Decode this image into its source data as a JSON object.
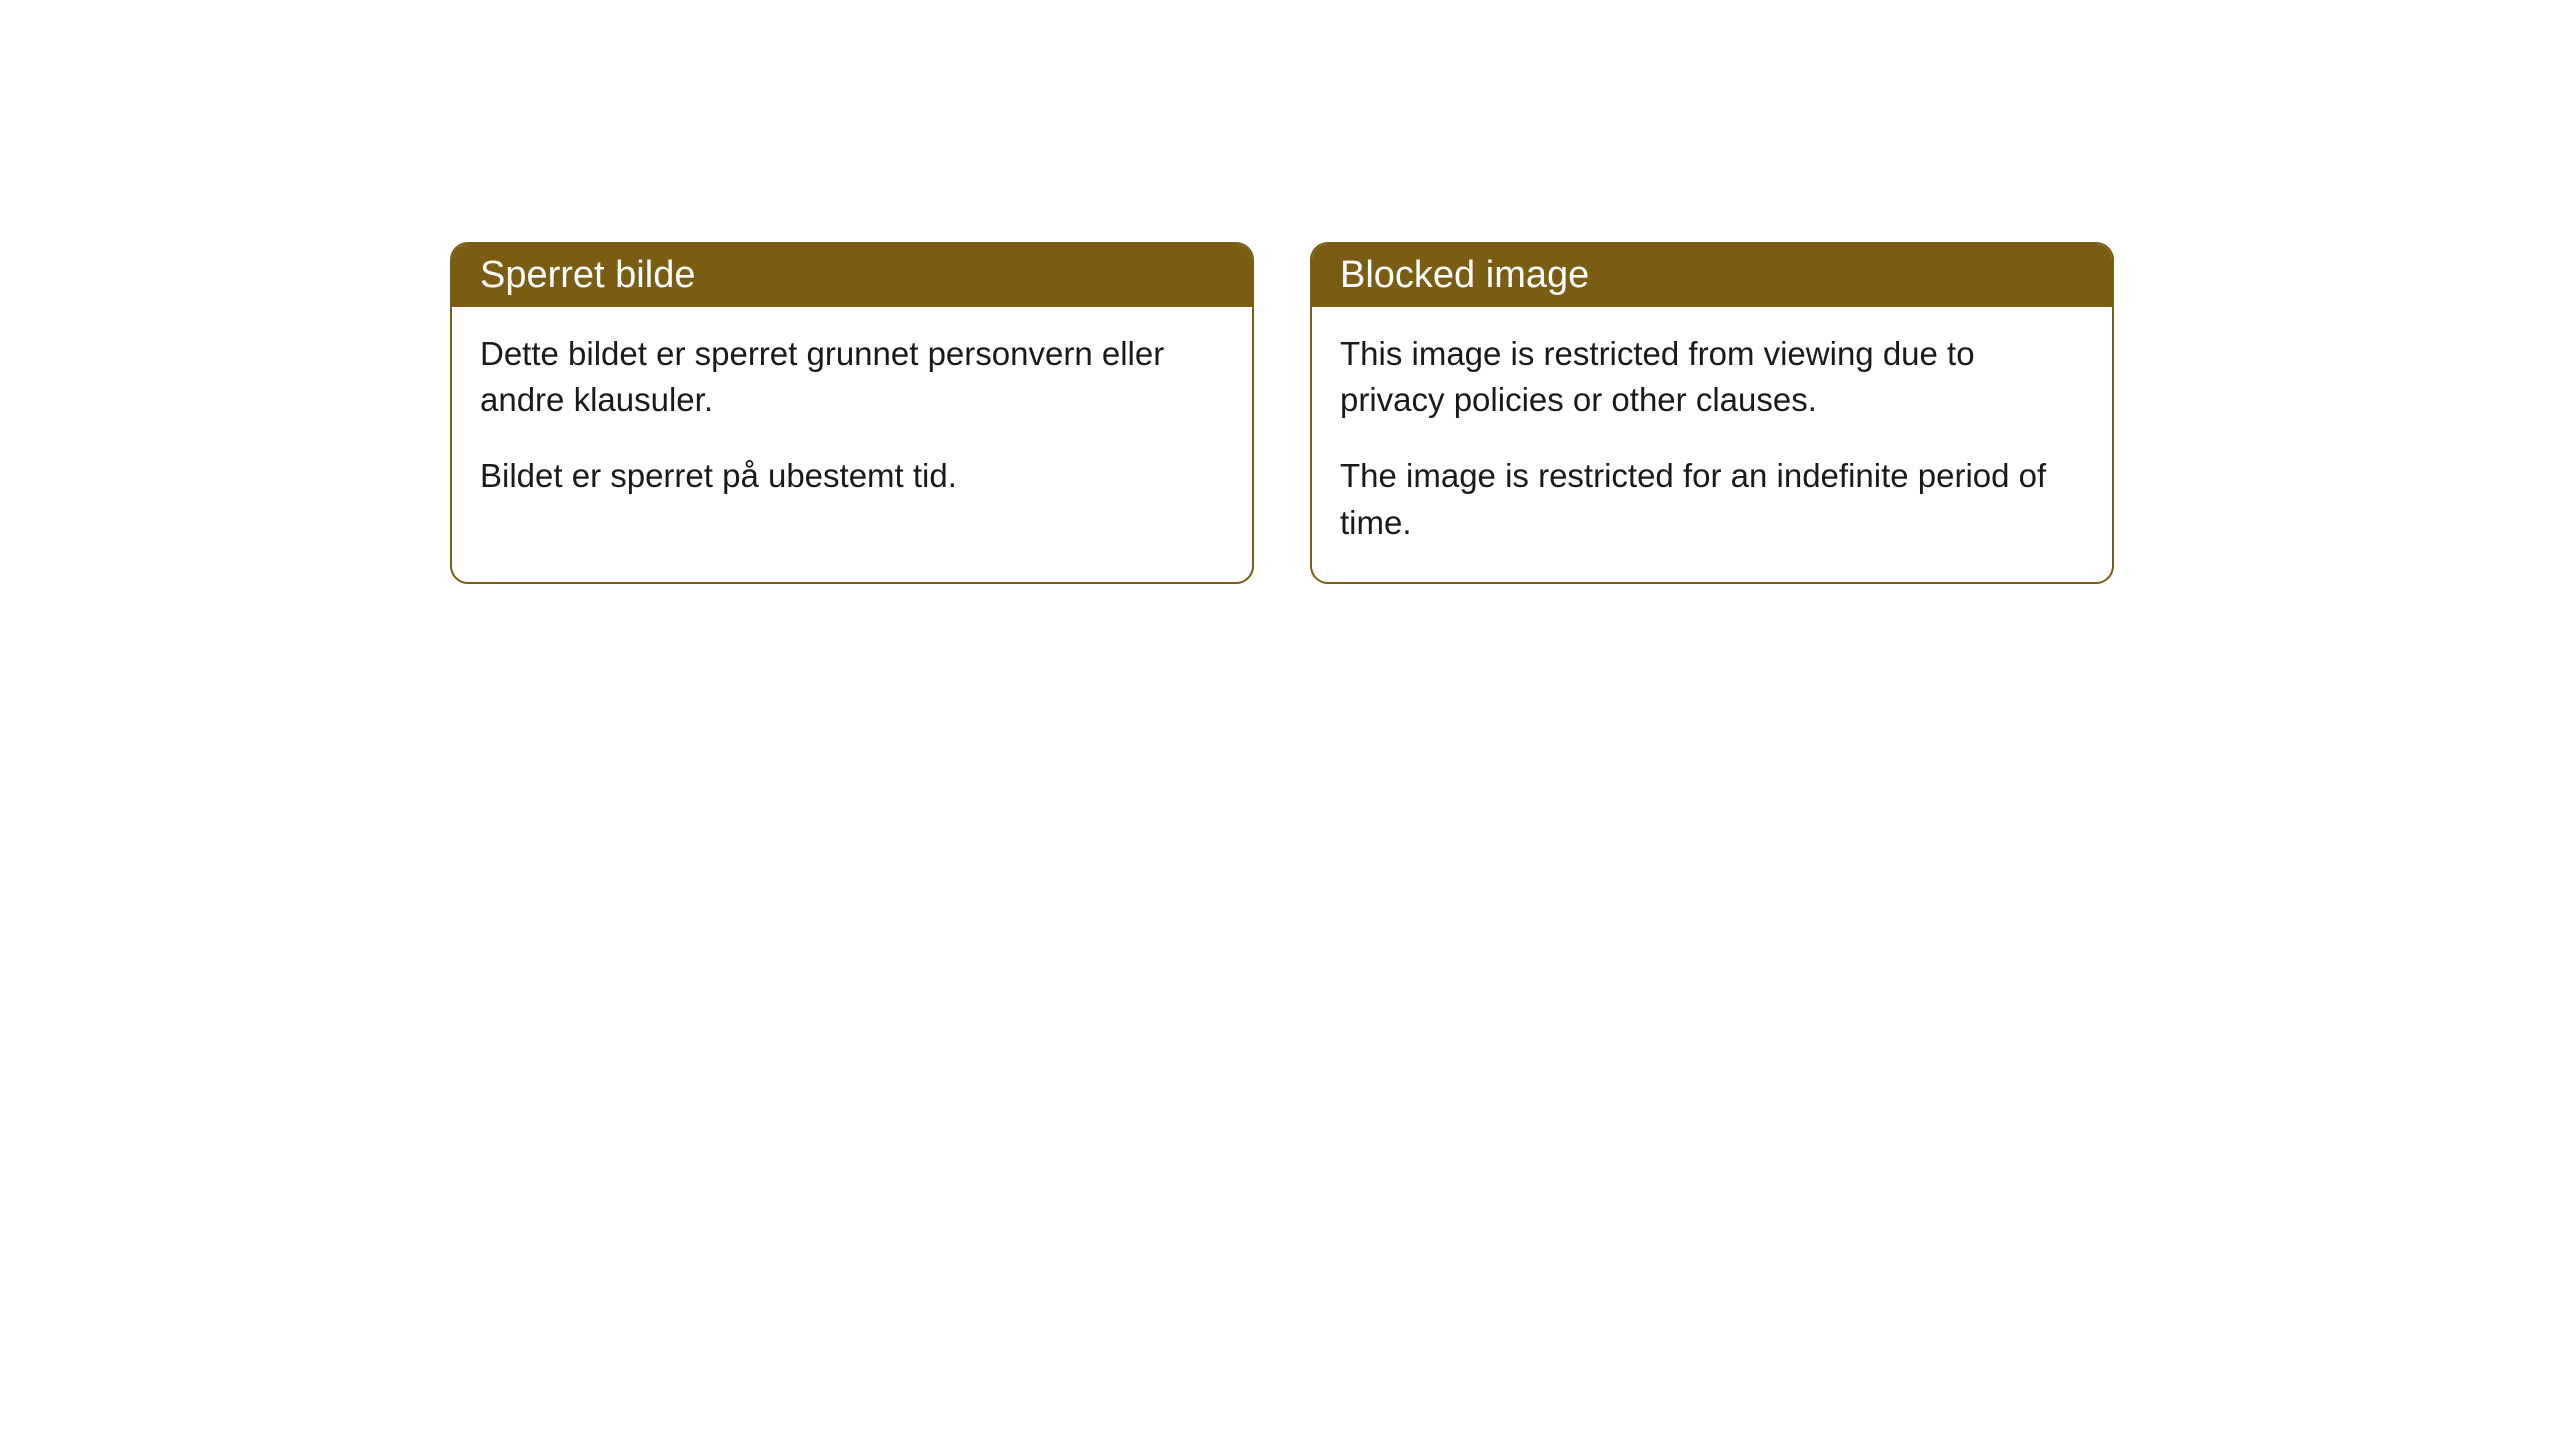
{
  "cards": [
    {
      "title": "Sperret bilde",
      "paragraph1": "Dette bildet er sperret grunnet personvern eller andre klausuler.",
      "paragraph2": "Bildet er sperret på ubestemt tid."
    },
    {
      "title": "Blocked image",
      "paragraph1": "This image is restricted from viewing due to privacy policies or other clauses.",
      "paragraph2": "The image is restricted for an indefinite period of time."
    }
  ],
  "style": {
    "header_bg_color": "#7a5c13",
    "header_text_color": "#ffffff",
    "border_color": "#7a5c13",
    "body_bg_color": "#ffffff",
    "body_text_color": "#1a1a1a",
    "border_radius": 18,
    "title_fontsize": 38,
    "body_fontsize": 33
  }
}
